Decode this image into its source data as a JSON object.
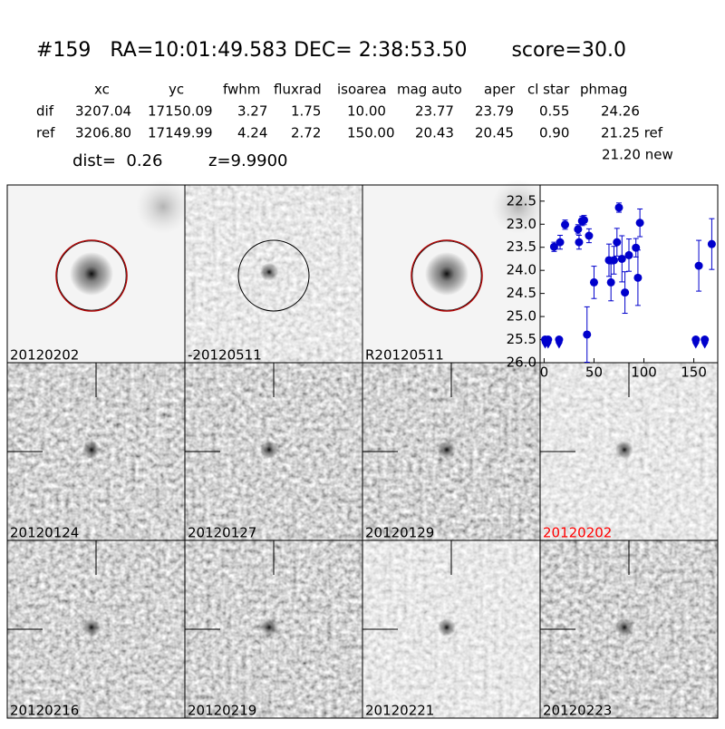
{
  "header": {
    "title": "#159   RA=10:01:49.583 DEC= 2:38:53.50       score=30.0",
    "columns": [
      "xc",
      "yc",
      "fwhm",
      "fluxrad",
      "isoarea",
      "mag auto",
      "aper",
      "cl star",
      "phmag"
    ],
    "rows": [
      {
        "label": "dif",
        "cells": [
          "3207.04",
          "17150.09",
          "3.27",
          "1.75",
          "10.00",
          "23.77",
          "23.79",
          "0.55",
          "24.26"
        ]
      },
      {
        "label": "ref",
        "cells": [
          "3206.80",
          "17149.99",
          "4.24",
          "2.72",
          "150.00",
          "20.43",
          "20.45",
          "0.90",
          "21.25 ref"
        ]
      }
    ],
    "extra": "21.20 new",
    "dist": "dist=  0.26",
    "z": "z=9.9900"
  },
  "panels": [
    {
      "label": "20120202"
    },
    {
      "label": "-20120511"
    },
    {
      "label": "R20120511"
    },
    {
      "label": "20120124"
    },
    {
      "label": "20120127"
    },
    {
      "label": "20120129"
    },
    {
      "label": "20120202",
      "label_color": "#ff0000"
    },
    {
      "label": "20120216"
    },
    {
      "label": "20120219"
    },
    {
      "label": "20120221"
    },
    {
      "label": "20120223"
    }
  ],
  "chart_data": {
    "type": "errorbar",
    "xlim": [
      -4,
      174
    ],
    "ylim": [
      26.0,
      22.15
    ],
    "xticks": [
      0,
      50,
      100,
      150
    ],
    "yticks": [
      22.5,
      {
        "value": 23.0,
        "label": "23.0"
      },
      23.5,
      {
        "value": 24.0,
        "label": "24.0"
      },
      24.5,
      {
        "value": 25.0,
        "label": "25.0"
      },
      25.5,
      {
        "value": 26.0,
        "label": "26.0"
      }
    ],
    "series": [
      {
        "color": "#0000cc",
        "marker": "circle",
        "x": [
          10,
          16,
          21,
          34,
          35,
          38,
          40,
          43,
          45,
          50,
          65,
          67,
          70,
          73,
          75,
          78,
          81,
          85,
          92,
          94,
          96,
          155,
          168
        ],
        "values": [
          23.49,
          23.39,
          23.01,
          23.11,
          23.39,
          22.93,
          22.91,
          25.39,
          23.25,
          24.26,
          23.78,
          24.26,
          23.78,
          23.39,
          22.64,
          23.75,
          24.48,
          23.67,
          23.51,
          24.16,
          22.97,
          23.9,
          23.43
        ],
        "errors": [
          0.1,
          0.15,
          0.1,
          0.1,
          0.15,
          0.1,
          0.1,
          0.6,
          0.15,
          0.35,
          0.35,
          0.4,
          0.3,
          0.3,
          0.1,
          0.5,
          0.45,
          0.35,
          0.2,
          0.6,
          0.3,
          0.55,
          0.55
        ]
      },
      {
        "color": "#0000cc",
        "marker": "limit",
        "x": [
          1,
          4,
          15,
          152,
          161
        ],
        "values": [
          25.5,
          25.5,
          25.5,
          25.5,
          25.5
        ]
      }
    ]
  }
}
